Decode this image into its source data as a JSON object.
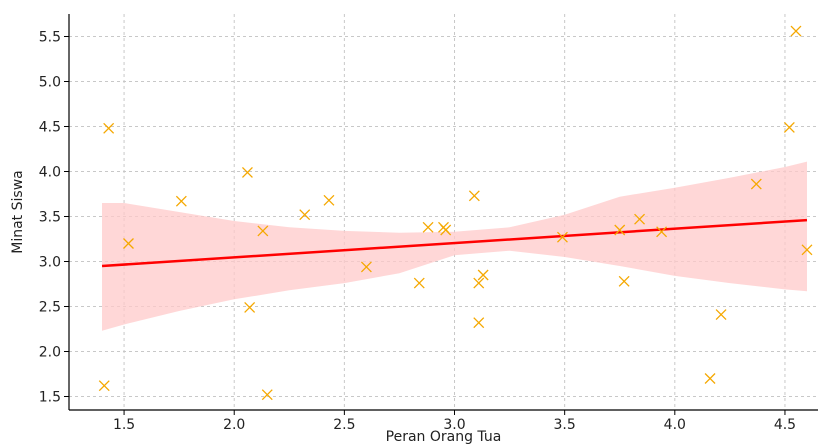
{
  "chart_data": {
    "type": "scatter",
    "title": "",
    "xlabel": "Peran Orang Tua",
    "ylabel": "Minat Siswa",
    "xlim": [
      1.25,
      4.65
    ],
    "ylim": [
      1.35,
      5.75
    ],
    "x_ticks": [
      1.5,
      2.0,
      2.5,
      3.0,
      3.5,
      4.0,
      4.5
    ],
    "x_tick_labels": [
      "1.5",
      "2.0",
      "2.5",
      "3.0",
      "3.5",
      "4.0",
      "4.5"
    ],
    "y_ticks": [
      1.5,
      2.0,
      2.5,
      3.0,
      3.5,
      4.0,
      4.5,
      5.0,
      5.5
    ],
    "y_tick_labels": [
      "1.5",
      "2.0",
      "2.5",
      "3.0",
      "3.5",
      "4.0",
      "4.5",
      "5.0",
      "5.5"
    ],
    "grid": true,
    "points": {
      "marker": "x",
      "color": "#f5a800",
      "x": [
        1.41,
        1.43,
        1.52,
        1.76,
        2.06,
        2.07,
        2.13,
        2.15,
        2.32,
        2.43,
        2.6,
        2.84,
        2.88,
        2.95,
        2.96,
        3.09,
        3.11,
        3.11,
        3.13,
        3.49,
        3.75,
        3.77,
        3.84,
        3.94,
        4.16,
        4.21,
        4.37,
        4.52,
        4.55,
        4.6
      ],
      "y": [
        1.62,
        4.48,
        3.2,
        3.67,
        3.99,
        2.49,
        3.34,
        1.52,
        3.52,
        3.68,
        2.94,
        2.76,
        3.38,
        3.38,
        3.35,
        3.73,
        2.76,
        2.32,
        2.85,
        3.27,
        3.35,
        2.78,
        3.47,
        3.33,
        1.7,
        2.41,
        3.86,
        4.49,
        5.56,
        3.13
      ]
    },
    "regression": {
      "color": "#ff0000",
      "x": [
        1.4,
        4.6
      ],
      "y": [
        2.95,
        3.46
      ]
    },
    "confidence_band": {
      "color": "#ffc9c9",
      "x": [
        1.4,
        1.5,
        1.75,
        2.0,
        2.25,
        2.5,
        2.75,
        3.0,
        3.25,
        3.5,
        3.75,
        4.0,
        4.25,
        4.5,
        4.6
      ],
      "upper": [
        3.65,
        3.65,
        3.55,
        3.45,
        3.38,
        3.34,
        3.32,
        3.33,
        3.38,
        3.52,
        3.72,
        3.82,
        3.93,
        4.05,
        4.11
      ],
      "lower": [
        2.23,
        2.3,
        2.45,
        2.58,
        2.68,
        2.76,
        2.87,
        3.07,
        3.12,
        3.05,
        2.95,
        2.84,
        2.76,
        2.69,
        2.67
      ]
    }
  }
}
